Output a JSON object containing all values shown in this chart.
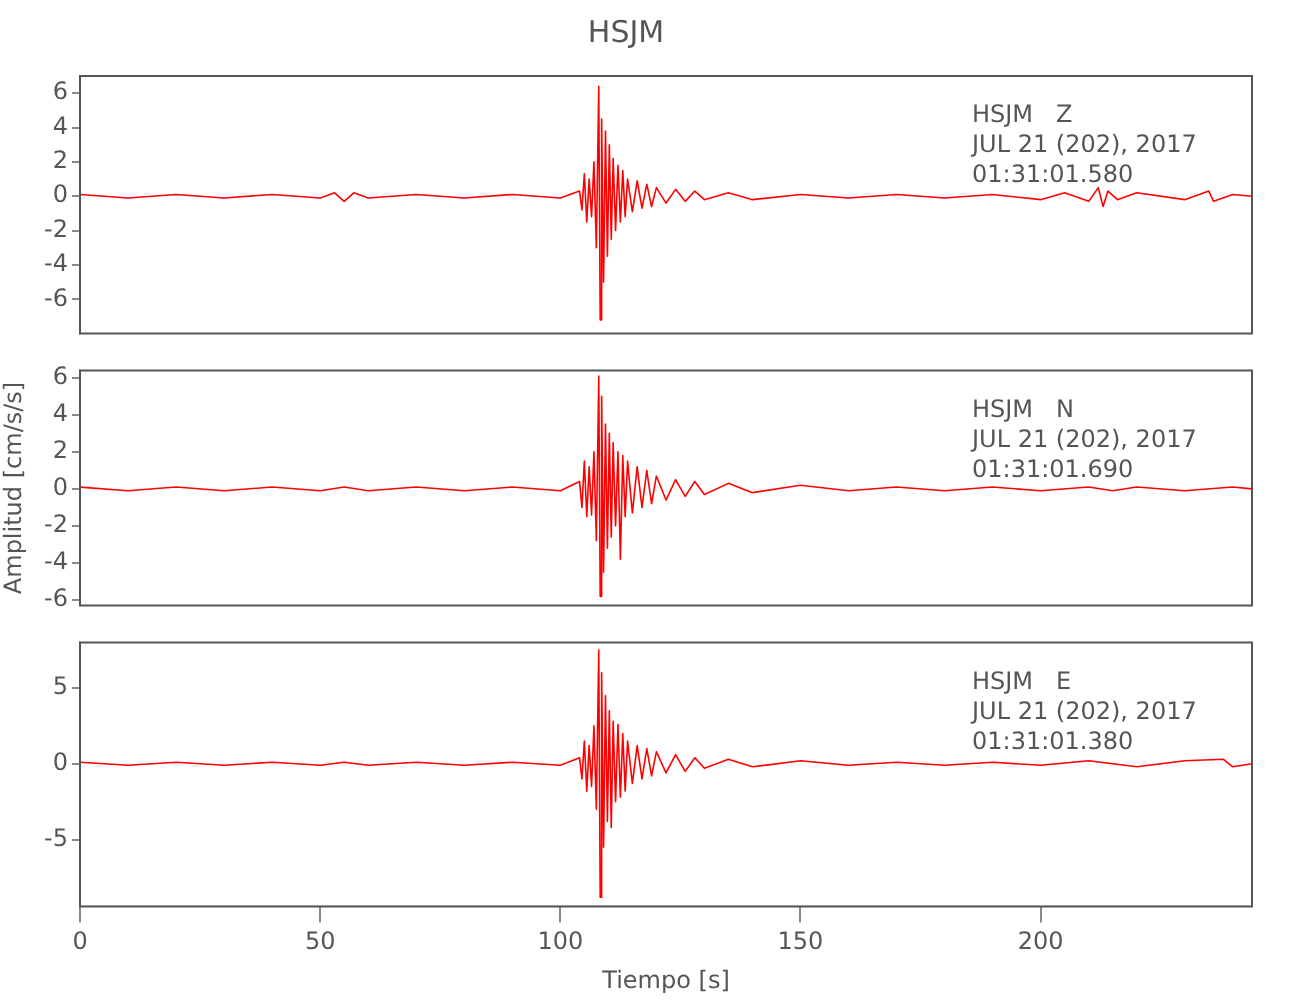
{
  "chart_data": [
    {
      "type": "line",
      "title": "HSJM",
      "tick_labels": "y",
      "xlim": [
        0,
        244
      ],
      "ylim": [
        -8,
        7
      ],
      "yticks": [
        -6,
        -4,
        -2,
        0,
        2,
        4,
        6
      ],
      "annotations": [
        "HSJM   Z",
        "JUL 21 (202), 2017",
        "01:31:01.580"
      ],
      "series": [
        {
          "color": "#ff0000",
          "x": [
            0,
            10,
            20,
            30,
            40,
            50,
            53,
            55,
            57,
            60,
            70,
            80,
            90,
            100,
            104,
            104.5,
            105,
            105.5,
            106,
            106.5,
            107,
            107.5,
            108,
            108.3,
            108.6,
            109,
            109.4,
            109.8,
            110.2,
            110.6,
            111,
            111.5,
            112,
            112.5,
            113,
            113.5,
            114,
            115,
            116,
            117,
            118,
            119,
            120,
            122,
            124,
            126,
            128,
            130,
            135,
            140,
            150,
            160,
            170,
            180,
            190,
            200,
            205,
            210,
            212,
            213,
            214,
            216,
            220,
            230,
            235,
            236,
            240,
            244
          ],
          "values": [
            0.1,
            -0.1,
            0.1,
            -0.1,
            0.1,
            -0.1,
            0.2,
            -0.3,
            0.2,
            -0.1,
            0.1,
            -0.1,
            0.1,
            -0.1,
            0.3,
            -0.8,
            1.3,
            -1.5,
            1.0,
            -1.2,
            2.0,
            -3.0,
            6.4,
            -7.2,
            4.5,
            -5.0,
            3.8,
            -3.5,
            3.0,
            -2.5,
            2.2,
            -2.0,
            1.8,
            -1.5,
            1.5,
            -1.2,
            1.0,
            -0.9,
            0.9,
            -0.7,
            0.7,
            -0.6,
            0.5,
            -0.4,
            0.4,
            -0.3,
            0.3,
            -0.2,
            0.2,
            -0.2,
            0.1,
            -0.1,
            0.1,
            -0.1,
            0.1,
            -0.2,
            0.2,
            -0.3,
            0.5,
            -0.6,
            0.3,
            -0.2,
            0.2,
            -0.2,
            0.3,
            -0.3,
            0.1,
            0
          ]
        }
      ]
    },
    {
      "type": "line",
      "ylabel": "Amplitud [cm/s/s]",
      "tick_labels": "y",
      "xlim": [
        0,
        244
      ],
      "ylim": [
        -6.3,
        6.4
      ],
      "yticks": [
        -6,
        -4,
        -2,
        0,
        2,
        4,
        6
      ],
      "annotations": [
        "HSJM   N",
        "JUL 21 (202), 2017",
        "01:31:01.690"
      ],
      "series": [
        {
          "color": "#ff0000",
          "x": [
            0,
            10,
            20,
            30,
            40,
            50,
            55,
            60,
            70,
            80,
            90,
            100,
            104,
            104.5,
            105,
            105.5,
            106,
            106.5,
            107,
            107.5,
            108,
            108.3,
            108.6,
            109,
            109.4,
            109.8,
            110.2,
            110.6,
            111,
            111.5,
            112,
            112.5,
            113,
            113.5,
            114,
            115,
            116,
            117,
            118,
            119,
            120,
            122,
            124,
            126,
            128,
            130,
            135,
            140,
            150,
            160,
            170,
            180,
            190,
            200,
            210,
            215,
            220,
            230,
            240,
            244
          ],
          "values": [
            0.1,
            -0.1,
            0.1,
            -0.1,
            0.1,
            -0.1,
            0.1,
            -0.1,
            0.1,
            -0.1,
            0.1,
            -0.1,
            0.4,
            -1.0,
            1.5,
            -1.5,
            1.2,
            -1.4,
            2.0,
            -2.8,
            6.1,
            -5.8,
            5.0,
            -4.5,
            3.5,
            -3.2,
            3.0,
            -2.6,
            2.5,
            -2.0,
            2.0,
            -3.8,
            1.8,
            -1.5,
            1.5,
            -1.3,
            1.2,
            -1.0,
            1.0,
            -0.8,
            0.7,
            -0.6,
            0.5,
            -0.4,
            0.4,
            -0.3,
            0.3,
            -0.2,
            0.2,
            -0.1,
            0.1,
            -0.1,
            0.1,
            -0.1,
            0.1,
            -0.1,
            0.1,
            -0.1,
            0.1,
            0
          ]
        }
      ]
    },
    {
      "type": "line",
      "xlabel": "Tiempo [s]",
      "xlim": [
        0,
        244
      ],
      "xticks": [
        0,
        50,
        100,
        150,
        200
      ],
      "ylim": [
        -9.4,
        8
      ],
      "yticks": [
        -5,
        0,
        5
      ],
      "annotations": [
        "HSJM   E",
        "JUL 21 (202), 2017",
        "01:31:01.380"
      ],
      "series": [
        {
          "color": "#ff0000",
          "x": [
            0,
            10,
            20,
            30,
            40,
            50,
            55,
            60,
            70,
            80,
            90,
            100,
            104,
            104.5,
            105,
            105.5,
            106,
            106.5,
            107,
            107.5,
            108,
            108.3,
            108.6,
            109,
            109.4,
            109.8,
            110.2,
            110.6,
            111,
            111.5,
            112,
            112.5,
            113,
            113.5,
            114,
            115,
            116,
            117,
            118,
            119,
            120,
            122,
            124,
            126,
            128,
            130,
            135,
            140,
            150,
            160,
            170,
            180,
            190,
            200,
            210,
            220,
            230,
            238,
            240,
            244
          ],
          "values": [
            0.1,
            -0.1,
            0.1,
            -0.1,
            0.1,
            -0.1,
            0.1,
            -0.1,
            0.1,
            -0.1,
            0.1,
            -0.1,
            0.4,
            -1.0,
            1.5,
            -1.8,
            1.2,
            -1.5,
            2.5,
            -3.0,
            7.5,
            -8.8,
            6.0,
            -5.5,
            4.5,
            -3.8,
            3.5,
            -4.2,
            2.8,
            -2.5,
            2.6,
            -2.2,
            2.0,
            -1.8,
            1.5,
            -1.3,
            1.2,
            -1.0,
            1.0,
            -0.8,
            0.8,
            -0.6,
            0.6,
            -0.5,
            0.4,
            -0.3,
            0.3,
            -0.2,
            0.2,
            -0.1,
            0.1,
            -0.1,
            0.1,
            -0.1,
            0.2,
            -0.2,
            0.2,
            0.3,
            -0.2,
            0
          ]
        }
      ]
    }
  ]
}
